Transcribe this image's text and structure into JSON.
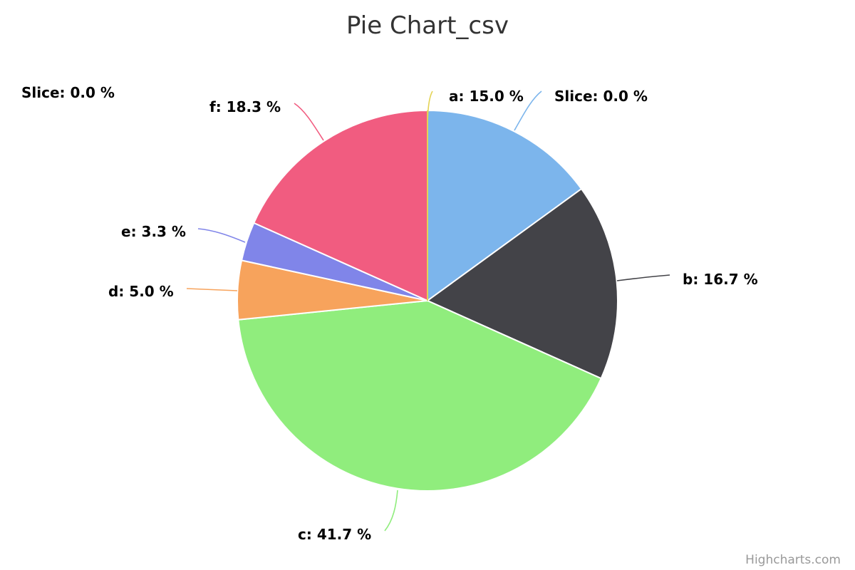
{
  "chart_data": {
    "type": "pie",
    "title": "Pie Chart_csv",
    "credits": "Highcharts.com",
    "label_suffix": " %",
    "slices": [
      {
        "name": "Slice",
        "value": 0.0,
        "color": "#e4d354"
      },
      {
        "name": "a",
        "value": 15.0,
        "color": "#7cb5ec"
      },
      {
        "name": "b",
        "value": 16.7,
        "color": "#434348"
      },
      {
        "name": "c",
        "value": 41.7,
        "color": "#90ed7d"
      },
      {
        "name": "d",
        "value": 5.0,
        "color": "#f7a35c"
      },
      {
        "name": "e",
        "value": 3.3,
        "color": "#8085e9"
      },
      {
        "name": "f",
        "value": 18.3,
        "color": "#f15c80"
      },
      {
        "name": "Slice",
        "value": 0.0,
        "color": "#e4d354"
      }
    ]
  }
}
